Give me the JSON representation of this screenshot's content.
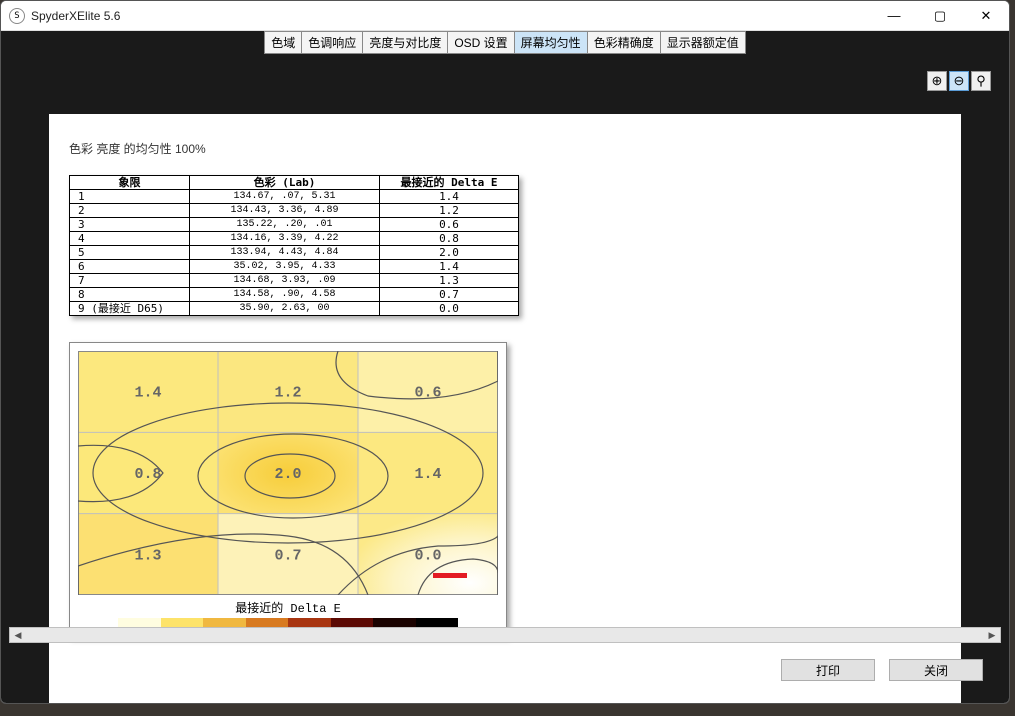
{
  "window": {
    "title": "SpyderXElite 5.6",
    "icon_letter": "S"
  },
  "titlebar_controls": {
    "minimize": "—",
    "maximize": "▢",
    "close": "✕"
  },
  "tabs": {
    "items": [
      {
        "label": "色域",
        "active": false
      },
      {
        "label": "色调响应",
        "active": false
      },
      {
        "label": "亮度与对比度",
        "active": false
      },
      {
        "label": "OSD 设置",
        "active": false
      },
      {
        "label": "屏幕均匀性",
        "active": true
      },
      {
        "label": "色彩精确度",
        "active": false
      },
      {
        "label": "显示器额定值",
        "active": false
      }
    ]
  },
  "zoom": {
    "in": "⊕",
    "out": "⊖",
    "fit": "⚲",
    "active_index": 1
  },
  "report": {
    "title": "色彩 亮度 的均匀性 100%",
    "table": {
      "headers": [
        "象限",
        "色彩 (Lab)",
        "最接近的 Delta E"
      ],
      "rows": [
        {
          "idx": "1",
          "lab": "134.67,   .07,  5.31",
          "de": "1.4"
        },
        {
          "idx": "2",
          "lab": "134.43,  3.36,  4.89",
          "de": "1.2"
        },
        {
          "idx": "3",
          "lab": "135.22,   .20,   .01",
          "de": "0.6"
        },
        {
          "idx": "4",
          "lab": "134.16,  3.39,  4.22",
          "de": "0.8"
        },
        {
          "idx": "5",
          "lab": "133.94,  4.43,  4.84",
          "de": "2.0"
        },
        {
          "idx": "6",
          "lab": " 35.02,  3.95,  4.33",
          "de": "1.4"
        },
        {
          "idx": "7",
          "lab": "134.68,  3.93,   .09",
          "de": "1.3"
        },
        {
          "idx": "8",
          "lab": "134.58,   .90,  4.58",
          "de": "0.7"
        },
        {
          "idx": "9 (最接近 D65)",
          "lab": " 35.90,  2.63,   00",
          "de": "0.0"
        }
      ]
    },
    "chart": {
      "type": "heatmap-contour",
      "grid_rows": 3,
      "grid_cols": 3,
      "cell_values": [
        [
          "1.4",
          "1.2",
          "0.6"
        ],
        [
          "0.8",
          "2.0",
          "1.4"
        ],
        [
          "1.3",
          "0.7",
          "0.0"
        ]
      ],
      "cell_colors": [
        [
          "#fce87e",
          "#fbe780",
          "#fdf0a8"
        ],
        [
          "#fce87a",
          "#fad84d",
          "#fce880"
        ],
        [
          "#fce072",
          "#fdf2b8",
          "#ffffff"
        ]
      ],
      "contour_color": "#555555",
      "grid_color": "#bfbfbf",
      "background_color": "#ffffff",
      "caption": "最接近的 Delta E",
      "reference_mark_color": "#e31b23",
      "value_fontsize": 15,
      "colorbar": [
        "#fffde0",
        "#fde36a",
        "#f0b840",
        "#d87a20",
        "#a83510",
        "#5c0a04",
        "#1a0200",
        "#000000"
      ]
    }
  },
  "buttons": {
    "print": "打印",
    "close": "关闭"
  }
}
